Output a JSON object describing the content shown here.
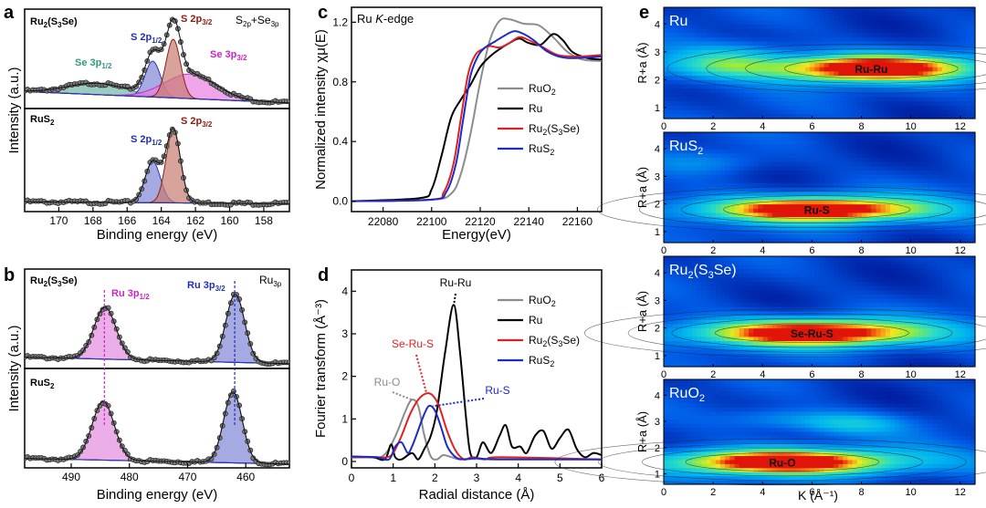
{
  "panels": {
    "a": {
      "letter": "a",
      "type": "xps",
      "ylabel": "Intensity (a.u.)",
      "xlabel": "Binding energy (eV)",
      "xlim": [
        172,
        156.5
      ],
      "xticks": [
        170,
        168,
        166,
        164,
        162,
        160,
        158
      ],
      "subpanels": [
        {
          "sample_label": "Ru2(S3Se)",
          "corner_label": "S2p+Se3p",
          "baseline": [
            [
              172,
              0.18
            ],
            [
              156.5,
              0.06
            ]
          ],
          "components": [
            {
              "name": "Se 3p1/2",
              "center": 167.8,
              "height": 0.12,
              "width": 1.7,
              "color": "#6fb8a6",
              "line": "#3a9a86"
            },
            {
              "name": "S 2p1/2",
              "center": 164.5,
              "height": 0.38,
              "width": 0.45,
              "color": "#7f86d6",
              "line": "#2a34b0"
            },
            {
              "name": "Se 3p3/2",
              "center": 162.3,
              "height": 0.26,
              "width": 1.5,
              "color": "#ea7fe2",
              "line": "#d028c8"
            },
            {
              "name": "S 2p3/2",
              "center": 163.3,
              "height": 0.62,
              "width": 0.42,
              "color": "#c77c70",
              "line": "#8a1f14"
            }
          ],
          "labels": [
            {
              "text": "Se 3p1/2",
              "color": "#2f9a80"
            },
            {
              "text": "S 2p1/2",
              "color": "#2230a8"
            },
            {
              "text": "S 2p3/2",
              "color": "#8a1a10"
            },
            {
              "text": "Se 3p3/2",
              "color": "#d020c8"
            }
          ]
        },
        {
          "sample_label": "RuS2",
          "baseline": [
            [
              172,
              0.1
            ],
            [
              156.5,
              0.08
            ]
          ],
          "components": [
            {
              "name": "S 2p1/2",
              "center": 164.5,
              "height": 0.42,
              "width": 0.45,
              "color": "#7f86d6",
              "line": "#2a34b0"
            },
            {
              "name": "S 2p3/2",
              "center": 163.3,
              "height": 0.75,
              "width": 0.42,
              "color": "#c77c70",
              "line": "#8a1f14"
            }
          ],
          "labels": [
            {
              "text": "S 2p1/2",
              "color": "#2230a8"
            },
            {
              "text": "S 2p3/2",
              "color": "#8a1a10"
            }
          ]
        }
      ]
    },
    "b": {
      "letter": "b",
      "type": "xps",
      "ylabel": "Intensity (a.u.)",
      "xlabel": "Binding energy (eV)",
      "xlim": [
        498,
        452.5
      ],
      "xticks": [
        490,
        480,
        470,
        460
      ],
      "subpanels": [
        {
          "sample_label": "Ru2(S3Se)",
          "corner_label": "Ru3p",
          "baseline": [
            [
              498,
              0.12
            ],
            [
              452.5,
              0.05
            ]
          ],
          "components": [
            {
              "name": "Ru 3p1/2",
              "center": 484.2,
              "height": 0.55,
              "width": 1.9,
              "color": "#e48ce0",
              "line": "#cc25c6"
            },
            {
              "name": "Ru 3p3/2",
              "center": 461.8,
              "height": 0.72,
              "width": 1.6,
              "color": "#7f86d6",
              "line": "#2a34b0"
            }
          ],
          "labels": [
            {
              "text": "Ru 3p1/2",
              "color": "#cc25c6"
            },
            {
              "text": "Ru 3p3/2",
              "color": "#2230a8"
            }
          ]
        },
        {
          "sample_label": "RuS2",
          "baseline": [
            [
              498,
              0.1
            ],
            [
              452.5,
              0.04
            ]
          ],
          "components": [
            {
              "name": "Ru 3p1/2",
              "center": 484.5,
              "height": 0.62,
              "width": 1.9,
              "color": "#e48ce0",
              "line": "#cc25c6"
            },
            {
              "name": "Ru 3p3/2",
              "center": 462.2,
              "height": 0.75,
              "width": 1.6,
              "color": "#7f86d6",
              "line": "#2a34b0"
            }
          ],
          "labels": []
        }
      ]
    },
    "c": {
      "letter": "c",
      "type": "line",
      "title": "Ru K-edge",
      "ylabel": "Normalized intensity χμ(E)",
      "xlabel": "Energy(eV)",
      "xlim": [
        22067,
        22170
      ],
      "ylim": [
        -0.07,
        1.3
      ],
      "xticks": [
        22080,
        22100,
        22120,
        22140,
        22160
      ],
      "yticks": [
        0.0,
        0.4,
        0.8,
        1.2
      ],
      "series": [
        {
          "name": "RuO2",
          "color": "#8c8c8c",
          "points": [
            [
              22067,
              0
            ],
            [
              22100,
              0.01
            ],
            [
              22108,
              0.05
            ],
            [
              22112,
              0.18
            ],
            [
              22116,
              0.45
            ],
            [
              22120,
              0.8
            ],
            [
              22124,
              1.08
            ],
            [
              22128,
              1.21
            ],
            [
              22132,
              1.22
            ],
            [
              22138,
              1.19
            ],
            [
              22144,
              1.18
            ],
            [
              22150,
              1.1
            ],
            [
              22156,
              1.0
            ],
            [
              22162,
              0.95
            ],
            [
              22170,
              0.94
            ]
          ]
        },
        {
          "name": "Ru",
          "color": "#000000",
          "points": [
            [
              22067,
              0
            ],
            [
              22095,
              0.02
            ],
            [
              22100,
              0.08
            ],
            [
              22104,
              0.3
            ],
            [
              22108,
              0.56
            ],
            [
              22112,
              0.68
            ],
            [
              22116,
              0.78
            ],
            [
              22120,
              0.9
            ],
            [
              22124,
              0.97
            ],
            [
              22128,
              1.02
            ],
            [
              22132,
              1.06
            ],
            [
              22136,
              1.09
            ],
            [
              22140,
              1.06
            ],
            [
              22145,
              1.05
            ],
            [
              22150,
              1.12
            ],
            [
              22154,
              1.08
            ],
            [
              22158,
              1.0
            ],
            [
              22164,
              0.96
            ],
            [
              22170,
              0.95
            ]
          ]
        },
        {
          "name": "Ru2(S3Se)",
          "color": "#e02020",
          "points": [
            [
              22067,
              0
            ],
            [
              22100,
              0.01
            ],
            [
              22105,
              0.06
            ],
            [
              22109,
              0.25
            ],
            [
              22112,
              0.55
            ],
            [
              22115,
              0.85
            ],
            [
              22118,
              0.98
            ],
            [
              22121,
              1.02
            ],
            [
              22124,
              1.04
            ],
            [
              22128,
              1.03
            ],
            [
              22132,
              1.06
            ],
            [
              22136,
              1.1
            ],
            [
              22140,
              1.08
            ],
            [
              22146,
              1.03
            ],
            [
              22152,
              0.98
            ],
            [
              22160,
              0.97
            ],
            [
              22170,
              0.98
            ]
          ]
        },
        {
          "name": "RuS2",
          "color": "#1c2bc4",
          "points": [
            [
              22067,
              0
            ],
            [
              22100,
              0.01
            ],
            [
              22106,
              0.06
            ],
            [
              22110,
              0.25
            ],
            [
              22113,
              0.55
            ],
            [
              22116,
              0.84
            ],
            [
              22119,
              0.97
            ],
            [
              22122,
              1.03
            ],
            [
              22126,
              1.07
            ],
            [
              22130,
              1.11
            ],
            [
              22134,
              1.14
            ],
            [
              22138,
              1.12
            ],
            [
              22142,
              1.08
            ],
            [
              22148,
              1.0
            ],
            [
              22156,
              0.96
            ],
            [
              22170,
              0.97
            ]
          ]
        }
      ],
      "legend": [
        "RuO2",
        "Ru",
        "Ru2(S3Se)",
        "RuS2"
      ]
    },
    "d": {
      "letter": "d",
      "type": "line",
      "ylabel": "Fourier transform (Å⁻³)",
      "xlabel": "Radial distance (Å)",
      "xlim": [
        0,
        6
      ],
      "ylim": [
        -0.15,
        4.5
      ],
      "xticks": [
        0,
        1,
        2,
        3,
        4,
        5,
        6
      ],
      "yticks": [
        0,
        1,
        2,
        3,
        4
      ],
      "series": [
        {
          "name": "RuO2",
          "color": "#8c8c8c",
          "points": [
            [
              0,
              0.1
            ],
            [
              0.4,
              0.1
            ],
            [
              0.7,
              0.1
            ],
            [
              0.9,
              0.3
            ],
            [
              1.1,
              0.7
            ],
            [
              1.3,
              1.2
            ],
            [
              1.45,
              1.45
            ],
            [
              1.6,
              1.3
            ],
            [
              1.75,
              0.6
            ],
            [
              1.9,
              0.12
            ],
            [
              2.05,
              0.05
            ],
            [
              2.2,
              0.15
            ],
            [
              2.4,
              0.1
            ],
            [
              2.6,
              0.05
            ],
            [
              3,
              0.06
            ],
            [
              6,
              0.05
            ]
          ]
        },
        {
          "name": "Ru",
          "color": "#000000",
          "points": [
            [
              0,
              0.1
            ],
            [
              0.5,
              0.1
            ],
            [
              0.8,
              0.05
            ],
            [
              0.95,
              0.4
            ],
            [
              1.05,
              0.1
            ],
            [
              1.2,
              0.05
            ],
            [
              1.45,
              0.2
            ],
            [
              1.6,
              0.05
            ],
            [
              1.75,
              0.3
            ],
            [
              1.9,
              0.6
            ],
            [
              2.05,
              1.2
            ],
            [
              2.25,
              2.6
            ],
            [
              2.45,
              3.68
            ],
            [
              2.6,
              2.6
            ],
            [
              2.75,
              1.0
            ],
            [
              2.85,
              0.2
            ],
            [
              3.0,
              0.1
            ],
            [
              3.15,
              0.45
            ],
            [
              3.35,
              0.2
            ],
            [
              3.55,
              0.6
            ],
            [
              3.7,
              0.85
            ],
            [
              3.85,
              0.35
            ],
            [
              4.05,
              0.35
            ],
            [
              4.2,
              0.2
            ],
            [
              4.4,
              0.6
            ],
            [
              4.6,
              0.72
            ],
            [
              4.8,
              0.3
            ],
            [
              5.0,
              0.55
            ],
            [
              5.2,
              0.75
            ],
            [
              5.4,
              0.3
            ],
            [
              5.6,
              0.1
            ],
            [
              5.8,
              0.2
            ],
            [
              6,
              0.15
            ]
          ]
        },
        {
          "name": "Ru2(S3Se)",
          "color": "#e02020",
          "points": [
            [
              0,
              0.1
            ],
            [
              0.6,
              0.1
            ],
            [
              0.85,
              0.1
            ],
            [
              1.0,
              0.2
            ],
            [
              1.2,
              0.6
            ],
            [
              1.4,
              1.1
            ],
            [
              1.6,
              1.45
            ],
            [
              1.8,
              1.6
            ],
            [
              1.95,
              1.55
            ],
            [
              2.1,
              1.3
            ],
            [
              2.3,
              0.7
            ],
            [
              2.5,
              0.25
            ],
            [
              2.7,
              0.05
            ],
            [
              2.9,
              0.1
            ],
            [
              3.2,
              0.05
            ],
            [
              3.6,
              0.1
            ],
            [
              6,
              0.05
            ]
          ]
        },
        {
          "name": "RuS2",
          "color": "#1c2bc4",
          "points": [
            [
              0,
              0.12
            ],
            [
              0.6,
              0.1
            ],
            [
              0.9,
              0.05
            ],
            [
              1.05,
              0.35
            ],
            [
              1.2,
              0.45
            ],
            [
              1.35,
              0.2
            ],
            [
              1.45,
              0.35
            ],
            [
              1.55,
              0.6
            ],
            [
              1.7,
              1.0
            ],
            [
              1.85,
              1.3
            ],
            [
              2.0,
              1.2
            ],
            [
              2.15,
              0.8
            ],
            [
              2.3,
              0.35
            ],
            [
              2.5,
              0.1
            ],
            [
              2.7,
              0.05
            ],
            [
              3.0,
              0.08
            ],
            [
              3.5,
              0.05
            ],
            [
              6,
              0.05
            ]
          ]
        }
      ],
      "legend": [
        "RuO2",
        "Ru",
        "Ru2(S3Se)",
        "RuS2"
      ],
      "annotations": [
        {
          "text": "Ru-Ru",
          "color": "#000000",
          "target": [
            2.45,
            3.65
          ]
        },
        {
          "text": "Se-Ru-S",
          "color": "#e02020",
          "target": [
            1.8,
            1.6
          ]
        },
        {
          "text": "Ru-O",
          "color": "#8c8c8c",
          "target": [
            1.45,
            1.45
          ]
        },
        {
          "text": "Ru-S",
          "color": "#1c2bc4",
          "target": [
            1.95,
            1.3
          ]
        }
      ]
    },
    "e": {
      "letter": "e",
      "type": "heatmap",
      "ylabel": "R+a (Å)",
      "xlabel": "K (Å⁻¹)",
      "xlim": [
        0,
        12.6
      ],
      "ylim": [
        0.6,
        4.6
      ],
      "xticks": [
        0,
        2,
        4,
        6,
        8,
        10,
        12
      ],
      "yticks": [
        1,
        2,
        3,
        4
      ],
      "maps": [
        {
          "name": "Ru",
          "peak_label": "Ru-Ru",
          "center": [
            8.4,
            2.4
          ],
          "spread": [
            2.6,
            0.32
          ],
          "secondary": [
            [
              2.5,
              2.5,
              0.3
            ],
            [
              3.0,
              3.0,
              0.18
            ]
          ]
        },
        {
          "name": "RuS2",
          "peak_label": "Ru-S",
          "center": [
            6.2,
            1.8
          ],
          "spread": [
            2.8,
            0.3
          ],
          "secondary": [
            [
              2.0,
              3.5,
              0.15
            ]
          ]
        },
        {
          "name": "Ru2(S3Se)",
          "peak_label": "Se-Ru-S",
          "center": [
            6.0,
            1.82
          ],
          "spread": [
            2.9,
            0.32
          ],
          "secondary": []
        },
        {
          "name": "RuO2",
          "peak_label": "Ru-O",
          "center": [
            4.8,
            1.45
          ],
          "spread": [
            2.9,
            0.32
          ],
          "secondary": [
            [
              7.5,
              2.9,
              0.3
            ],
            [
              4.5,
              3.1,
              0.2
            ]
          ]
        }
      ]
    }
  }
}
